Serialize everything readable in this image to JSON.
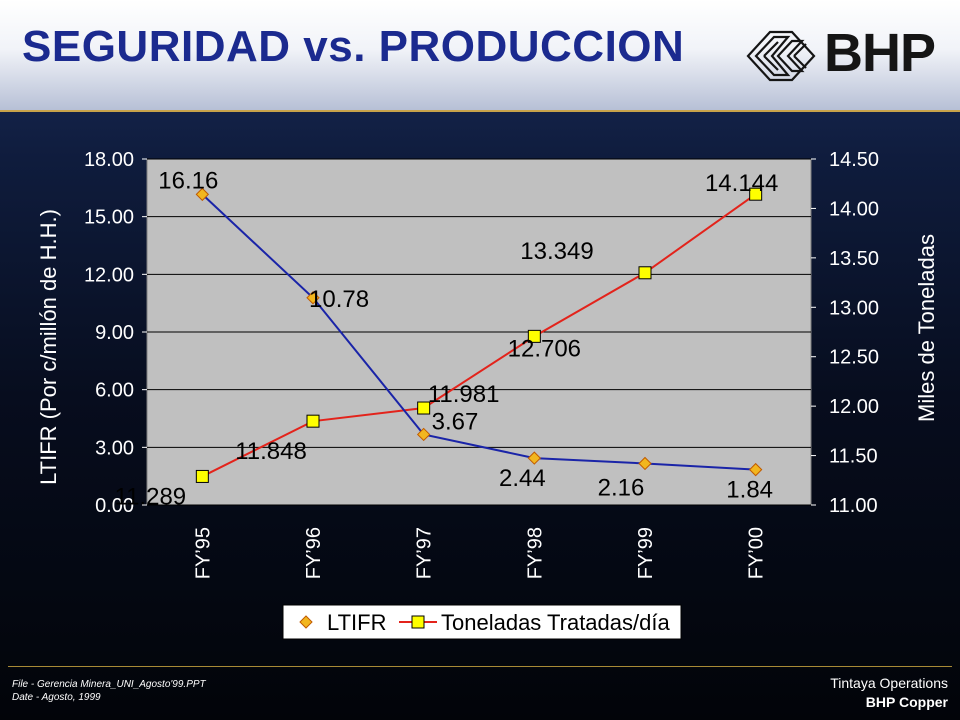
{
  "header": {
    "title": "SEGURIDAD vs. PRODUCCION",
    "logo_text": "BHP"
  },
  "colors": {
    "ltifr_line": "#1a24a8",
    "ltifr_marker": "#f2b61f",
    "toneladas_line": "#e3231b",
    "toneladas_marker": "#ffff00",
    "plot_background": "#c0c0c0"
  },
  "chart_data": {
    "type": "line",
    "categories": [
      "FY’95",
      "FY’96",
      "FY’97",
      "FY’98",
      "FY’99",
      "FY’00"
    ],
    "series": [
      {
        "name": "LTIFR",
        "axis": "left",
        "marker": "diamond",
        "values": [
          16.16,
          10.78,
          3.67,
          2.44,
          2.16,
          1.84
        ],
        "labels": [
          "16.16",
          "10.78",
          "3.67",
          "2.44",
          "2.16",
          "1.84"
        ]
      },
      {
        "name": "Toneladas Tratadas/día",
        "axis": "right",
        "marker": "square",
        "values": [
          11.289,
          11.848,
          11.981,
          12.706,
          13.349,
          14.144
        ],
        "labels": [
          "11.289",
          "11.848",
          "11.981",
          "12.706",
          "13.349",
          "14.144"
        ]
      }
    ],
    "y_left": {
      "label": "LTIFR (Por c/millón de H.H.)",
      "ylim": [
        0,
        18
      ],
      "ticks": [
        "0.00",
        "3.00",
        "6.00",
        "9.00",
        "12.00",
        "15.00",
        "18.00"
      ]
    },
    "y_right": {
      "label": "Miles de Toneladas",
      "ylim": [
        11.0,
        14.5
      ],
      "ticks": [
        "11.00",
        "11.50",
        "12.00",
        "12.50",
        "13.00",
        "13.50",
        "14.00",
        "14.50"
      ]
    },
    "grid": true,
    "legend_position": "bottom"
  },
  "footer": {
    "file_line": "File - Gerencia Minera_UNI_Agosto'99.PPT",
    "date_line": "Date - Agosto, 1999",
    "org_line1": "Tintaya Operations",
    "org_line2": "BHP Copper"
  }
}
